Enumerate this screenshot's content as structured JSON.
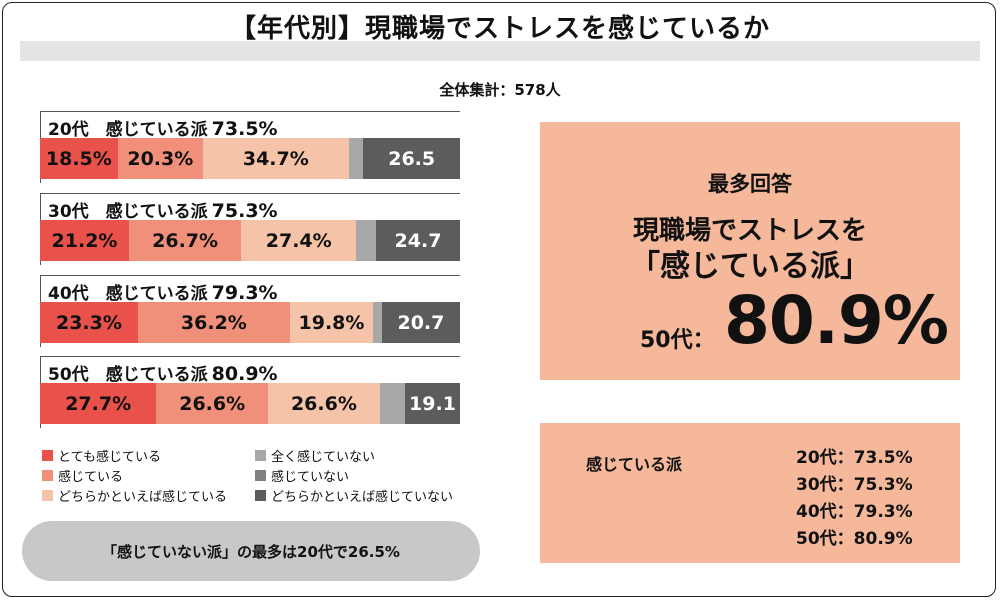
{
  "title": "【年代別】現職場でストレスを感じているか",
  "total": "全体集計：578人",
  "groups": [
    {
      "label": "20代　感じている派",
      "pct": "73.5%"
    },
    {
      "label": "30代　感じている派",
      "pct": "75.3%"
    },
    {
      "label": "40代　感じている派",
      "pct": "79.3%"
    },
    {
      "label": "50代　感じている派",
      "pct": "80.9%"
    }
  ],
  "colors": [
    "#e8524a",
    "#f0907a",
    "#f5c3a8",
    "#a8a8a8",
    "#5c5c5c"
  ],
  "chart_data": {
    "type": "bar",
    "stacked": true,
    "orientation": "horizontal",
    "categories": [
      "20代",
      "30代",
      "40代",
      "50代"
    ],
    "series": [
      {
        "name": "とても感じている",
        "values": [
          18.5,
          21.2,
          23.3,
          27.7
        ]
      },
      {
        "name": "感じている",
        "values": [
          20.3,
          26.7,
          36.2,
          26.6
        ]
      },
      {
        "name": "どちらかといえば感じている",
        "values": [
          34.7,
          27.4,
          19.8,
          26.6
        ]
      },
      {
        "name": "全く感じていない",
        "values": [
          3.5,
          4.7,
          2.1,
          6.0
        ]
      },
      {
        "name": "感じていない／どちらかといえば感じていない",
        "values": [
          23.0,
          20.0,
          18.6,
          13.1
        ]
      }
    ],
    "value_labels": [
      [
        "18.5%",
        "20.3%",
        "34.7%",
        "",
        "26.5"
      ],
      [
        "21.2%",
        "26.7%",
        "27.4%",
        "",
        "24.7"
      ],
      [
        "23.3%",
        "36.2%",
        "19.8%",
        "",
        "20.7"
      ],
      [
        "27.7%",
        "26.6%",
        "26.6%",
        "",
        "19.1"
      ]
    ],
    "legend": [
      "とても感じている",
      "全く感じていない",
      "感じている",
      "感じていない",
      "どちらかといえば感じている",
      "どちらかといえば感じていない"
    ]
  },
  "note": "「感じていない派」の最多は20代で26.5%",
  "highlight": {
    "head": "最多回答",
    "line1": "現職場でストレスを",
    "line2": "「感じている派」",
    "age": "50代：",
    "value": "80.9%"
  },
  "summary": {
    "label": "感じている派",
    "rows": [
      "20代：73.5%",
      "30代：75.3%",
      "40代：79.3%",
      "50代：80.9%"
    ]
  }
}
